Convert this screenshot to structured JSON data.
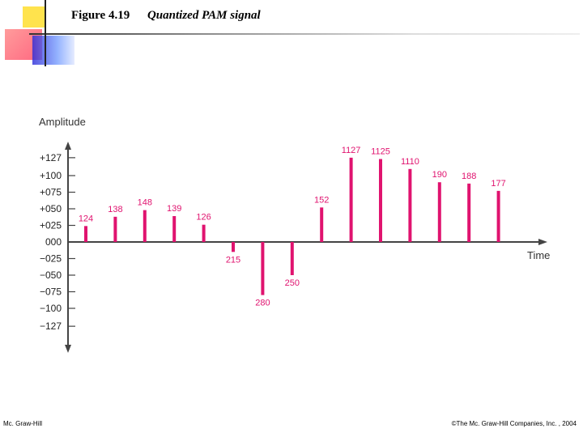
{
  "header": {
    "figure_label": "Figure 4.19",
    "title": "Quantized PAM signal"
  },
  "footer": {
    "left": "Mc. Graw-Hill",
    "right": "©The Mc. Graw-Hill Companies, Inc. , 2004"
  },
  "chart_data": {
    "type": "bar",
    "title": "Quantized PAM signal",
    "xlabel": "Time",
    "ylabel": "Amplitude",
    "ylim": [
      -127,
      127
    ],
    "y_ticks": [
      127,
      100,
      75,
      50,
      25,
      0,
      -25,
      -50,
      -75,
      -100,
      -127
    ],
    "y_tick_labels": [
      "+127",
      "+100",
      "+075",
      "+050",
      "+025",
      "000",
      "−025",
      "−050",
      "−075",
      "−100",
      "−127"
    ],
    "grid": false,
    "series": [
      {
        "values": [
          24,
          38,
          48,
          39,
          26,
          -15,
          -80,
          -50,
          52,
          127,
          125,
          110,
          90,
          88,
          77
        ],
        "labels": [
          "124",
          "138",
          "148",
          "139",
          "126",
          "215",
          "280",
          "250",
          "152",
          "1127",
          "1125",
          "1110",
          "190",
          "188",
          "177"
        ]
      }
    ],
    "colors": {
      "bars": "#e0136f",
      "labels": "#e0136f",
      "axis": "#444444"
    }
  }
}
